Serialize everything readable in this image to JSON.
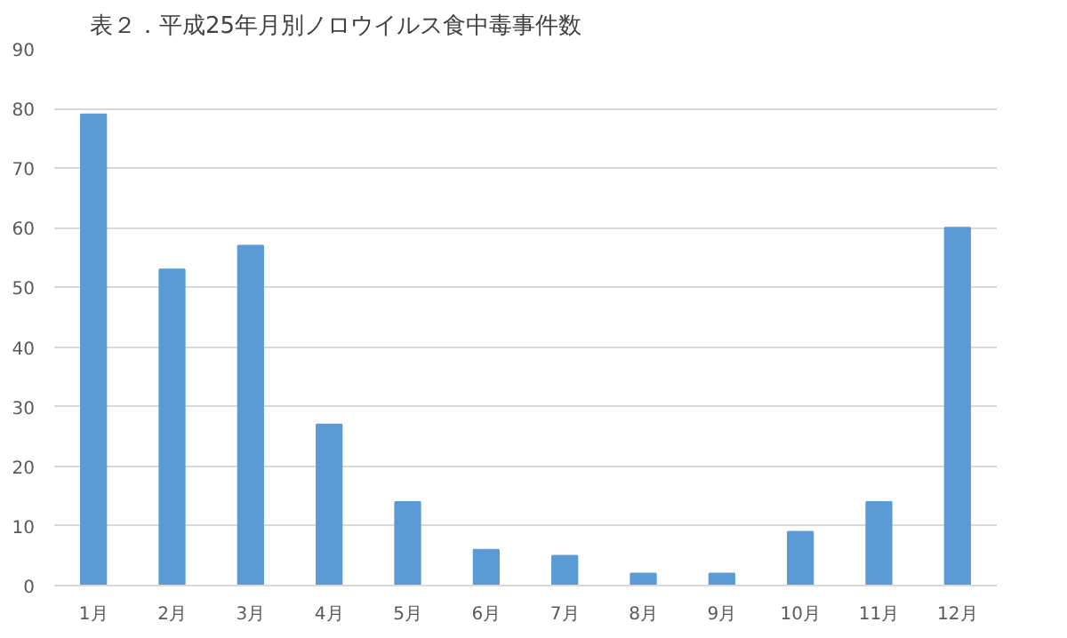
{
  "chart_data": {
    "type": "bar",
    "title": "表２．平成25年月別ノロウイルス食中毒事件数",
    "categories": [
      "1月",
      "2月",
      "3月",
      "4月",
      "5月",
      "6月",
      "7月",
      "8月",
      "9月",
      "10月",
      "11月",
      "12月"
    ],
    "values": [
      79,
      53,
      57,
      27,
      14,
      6,
      5,
      2,
      2,
      9,
      14,
      60
    ],
    "color": "#5b9bd5",
    "ylim": [
      0,
      90
    ],
    "yticks": [
      0,
      10,
      20,
      30,
      40,
      50,
      60,
      70,
      80,
      90
    ],
    "grid": "y"
  }
}
